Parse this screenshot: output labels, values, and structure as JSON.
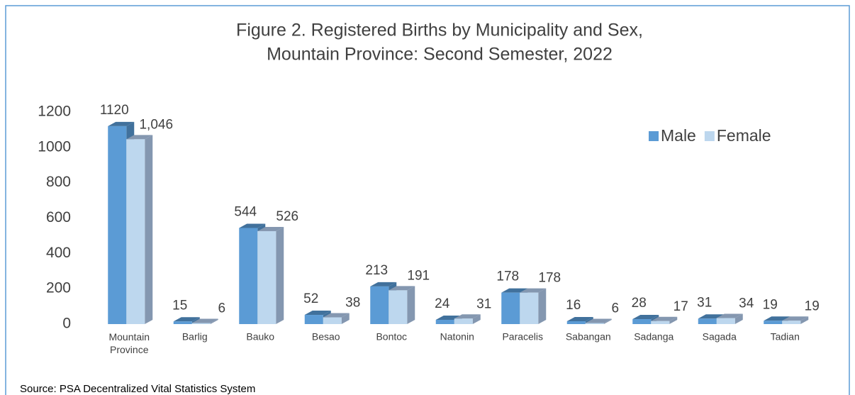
{
  "chart_data": {
    "type": "bar3d",
    "title": "Figure 2. Registered Births by Municipality and Sex,",
    "subtitle": "Mountain Province: Second Semester, 2022",
    "source": "Source: PSA Decentralized Vital Statistics System",
    "categories": [
      "Mountain Province",
      "Barlig",
      "Bauko",
      "Besao",
      "Bontoc",
      "Natonin",
      "Paracelis",
      "Sabangan",
      "Sadanga",
      "Sagada",
      "Tadian"
    ],
    "series": [
      {
        "name": "Male",
        "color": "#5b9bd5",
        "side_color": "#41719c",
        "values": [
          1120,
          15,
          544,
          52,
          213,
          24,
          178,
          16,
          28,
          31,
          19
        ]
      },
      {
        "name": "Female",
        "color": "#bdd7ee",
        "side_color": "#8497b0",
        "values": [
          1046,
          6,
          526,
          38,
          191,
          31,
          178,
          6,
          17,
          34,
          19
        ],
        "value_labels": [
          "1,046",
          "6",
          "526",
          "38",
          "191",
          "31",
          "178",
          "6",
          "17",
          "34",
          "19"
        ]
      }
    ],
    "ylim": [
      0,
      1200
    ],
    "yticks": [
      0,
      200,
      400,
      600,
      800,
      1000,
      1200
    ],
    "grid": false,
    "legend": "top-right"
  }
}
